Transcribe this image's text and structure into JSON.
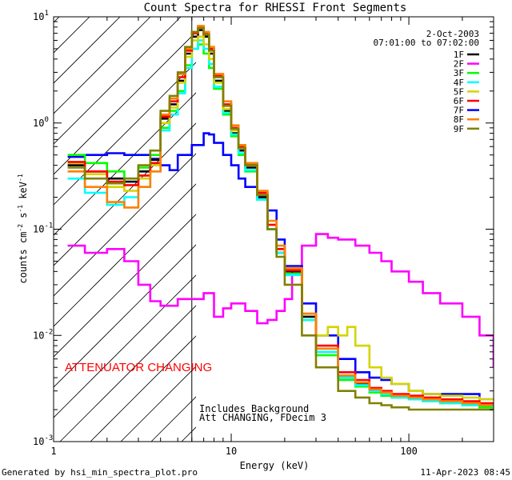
{
  "chart_data": {
    "type": "line",
    "title": "Count Spectra for RHESSI Front Segments",
    "xlabel": "Energy (keV)",
    "ylabel_parts": {
      "main": "counts cm",
      "sup1": "-2",
      "s": " s",
      "sup2": "-1",
      "kev": " keV",
      "sup3": "-1"
    },
    "x_scale": "log",
    "y_scale": "log",
    "xlim": [
      1,
      300
    ],
    "ylim": [
      0.001,
      10
    ],
    "x_ticks": [
      {
        "v": 1,
        "label": "1"
      },
      {
        "v": 10,
        "label": "10"
      },
      {
        "v": 100,
        "label": "100"
      }
    ],
    "y_ticks": [
      {
        "v": 0.001,
        "base": "10",
        "exp": "-3"
      },
      {
        "v": 0.01,
        "base": "10",
        "exp": "-2"
      },
      {
        "v": 0.1,
        "base": "10",
        "exp": "-1"
      },
      {
        "v": 1,
        "base": "10",
        "exp": "0"
      },
      {
        "v": 10,
        "base": "10",
        "exp": "1"
      }
    ],
    "date": "2-Oct-2003",
    "time_range": "07:01:00 to 07:02:00",
    "attenuator_boundary_kev": 6,
    "attenuator_label": "ATTENUATOR CHANGING",
    "footnote_lines": [
      "Includes Background",
      "Att CHANGING, FDecim 3"
    ],
    "legend": [
      {
        "name": "1F",
        "color": "#000000"
      },
      {
        "name": "2F",
        "color": "#ff00ff"
      },
      {
        "name": "3F",
        "color": "#00ff00"
      },
      {
        "name": "4F",
        "color": "#00ffff"
      },
      {
        "name": "5F",
        "color": "#d4d400"
      },
      {
        "name": "6F",
        "color": "#ff0000"
      },
      {
        "name": "7F",
        "color": "#0000ff"
      },
      {
        "name": "8F",
        "color": "#ff8000"
      },
      {
        "name": "9F",
        "color": "#808000"
      }
    ],
    "series": [
      {
        "name": "2F",
        "color": "#ff00ff",
        "x": [
          1.2,
          1.5,
          2,
          2.5,
          3,
          3.5,
          4,
          5,
          6,
          7,
          8,
          9,
          10,
          11,
          12,
          14,
          16,
          18,
          20,
          22,
          25,
          30,
          35,
          40,
          50,
          60,
          70,
          80,
          100,
          120,
          150,
          200,
          250,
          300
        ],
        "y": [
          0.07,
          0.06,
          0.065,
          0.05,
          0.03,
          0.021,
          0.019,
          0.022,
          0.022,
          0.025,
          0.015,
          0.018,
          0.02,
          0.02,
          0.017,
          0.013,
          0.014,
          0.017,
          0.022,
          0.04,
          0.07,
          0.09,
          0.083,
          0.08,
          0.07,
          0.06,
          0.05,
          0.04,
          0.032,
          0.025,
          0.02,
          0.015,
          0.01,
          0.005
        ]
      },
      {
        "name": "7F",
        "color": "#0000ff",
        "x": [
          1.2,
          1.5,
          2,
          2.5,
          3,
          3.5,
          4,
          4.5,
          5,
          6,
          7,
          7.5,
          8,
          9,
          10,
          11,
          12,
          14,
          16,
          18,
          20,
          25,
          30,
          40,
          50,
          60,
          70,
          80,
          100,
          120,
          150,
          200,
          250,
          300
        ],
        "y": [
          0.48,
          0.5,
          0.52,
          0.5,
          0.5,
          0.46,
          0.4,
          0.36,
          0.5,
          0.62,
          0.8,
          0.78,
          0.65,
          0.5,
          0.4,
          0.3,
          0.25,
          0.2,
          0.15,
          0.08,
          0.045,
          0.02,
          0.01,
          0.006,
          0.0045,
          0.004,
          0.0038,
          0.0035,
          0.003,
          0.0028,
          0.0028,
          0.0028,
          0.0025,
          0.0025
        ]
      },
      {
        "name": "1F",
        "color": "#000000",
        "x": [
          1.2,
          1.5,
          2,
          2.5,
          3,
          3.5,
          4,
          4.5,
          5,
          5.5,
          6,
          6.5,
          7,
          7.5,
          8,
          9,
          10,
          11,
          12,
          14,
          16,
          18,
          20,
          25,
          30,
          40,
          50,
          60,
          70,
          80,
          100,
          120,
          150,
          200,
          250,
          300
        ],
        "y": [
          0.4,
          0.35,
          0.3,
          0.28,
          0.35,
          0.45,
          1.1,
          1.5,
          2.5,
          4.5,
          6.5,
          7.5,
          6.5,
          4.5,
          2.5,
          1.3,
          0.8,
          0.55,
          0.38,
          0.2,
          0.1,
          0.06,
          0.04,
          0.015,
          0.007,
          0.004,
          0.0035,
          0.003,
          0.0028,
          0.0027,
          0.0026,
          0.0025,
          0.0024,
          0.0023,
          0.0022,
          0.0022
        ]
      },
      {
        "name": "3F",
        "color": "#00ff00",
        "x": [
          1.2,
          1.5,
          2,
          2.5,
          3,
          3.5,
          4,
          4.5,
          5,
          5.5,
          6,
          6.5,
          7,
          7.5,
          8,
          9,
          10,
          11,
          12,
          14,
          16,
          18,
          20,
          25,
          30,
          40,
          50,
          60,
          70,
          80,
          100,
          120,
          150,
          200,
          250,
          300
        ],
        "y": [
          0.5,
          0.42,
          0.35,
          0.3,
          0.38,
          0.5,
          0.9,
          1.3,
          2.0,
          3.5,
          5.0,
          5.5,
          4.5,
          3.3,
          2.1,
          1.2,
          0.75,
          0.5,
          0.35,
          0.19,
          0.1,
          0.06,
          0.038,
          0.014,
          0.0065,
          0.0038,
          0.0033,
          0.0029,
          0.0027,
          0.0026,
          0.0025,
          0.0024,
          0.0023,
          0.0022,
          0.0021,
          0.0021
        ]
      },
      {
        "name": "4F",
        "color": "#00ffff",
        "x": [
          1.2,
          1.5,
          2,
          2.5,
          3,
          3.5,
          4,
          4.5,
          5,
          5.5,
          6,
          6.5,
          7,
          7.5,
          8,
          9,
          10,
          11,
          12,
          14,
          16,
          18,
          20,
          25,
          30,
          40,
          50,
          60,
          70,
          80,
          100,
          120,
          150,
          200,
          250,
          300
        ],
        "y": [
          0.3,
          0.22,
          0.17,
          0.2,
          0.25,
          0.35,
          0.85,
          1.2,
          1.9,
          3.3,
          5.0,
          6.0,
          5.0,
          3.6,
          2.2,
          1.25,
          0.78,
          0.52,
          0.36,
          0.19,
          0.1,
          0.06,
          0.037,
          0.014,
          0.007,
          0.004,
          0.0034,
          0.003,
          0.0028,
          0.0026,
          0.0025,
          0.0024,
          0.0023,
          0.0022,
          0.0022,
          0.0021
        ]
      },
      {
        "name": "5F",
        "color": "#d4d400",
        "x": [
          1.2,
          1.5,
          2,
          2.5,
          3,
          3.5,
          4,
          4.5,
          5,
          5.5,
          6,
          6.5,
          7,
          7.5,
          8,
          9,
          10,
          11,
          12,
          14,
          16,
          18,
          20,
          25,
          30,
          35,
          40,
          45,
          50,
          60,
          70,
          80,
          100,
          120,
          150,
          200,
          250,
          300
        ],
        "y": [
          0.42,
          0.33,
          0.25,
          0.23,
          0.3,
          0.4,
          1.0,
          1.4,
          2.4,
          4.2,
          6.0,
          6.5,
          5.5,
          4.0,
          2.4,
          1.35,
          0.85,
          0.58,
          0.4,
          0.22,
          0.11,
          0.065,
          0.042,
          0.016,
          0.01,
          0.012,
          0.01,
          0.012,
          0.008,
          0.005,
          0.004,
          0.0035,
          0.003,
          0.0028,
          0.0027,
          0.0026,
          0.0025,
          0.0025
        ]
      },
      {
        "name": "6F",
        "color": "#ff0000",
        "x": [
          1.2,
          1.5,
          2,
          2.5,
          3,
          3.5,
          4,
          4.5,
          5,
          5.5,
          6,
          6.5,
          7,
          7.5,
          8,
          9,
          10,
          11,
          12,
          14,
          16,
          18,
          20,
          25,
          30,
          40,
          50,
          60,
          70,
          80,
          100,
          120,
          150,
          200,
          250,
          300
        ],
        "y": [
          0.43,
          0.35,
          0.28,
          0.26,
          0.32,
          0.42,
          1.15,
          1.6,
          2.7,
          4.8,
          7.0,
          8.0,
          7.0,
          5.0,
          2.8,
          1.5,
          0.9,
          0.6,
          0.41,
          0.22,
          0.11,
          0.065,
          0.041,
          0.016,
          0.008,
          0.0045,
          0.0038,
          0.0032,
          0.003,
          0.0028,
          0.0027,
          0.0026,
          0.0025,
          0.0024,
          0.0023,
          0.0023
        ]
      },
      {
        "name": "8F",
        "color": "#ff8000",
        "x": [
          1.2,
          1.5,
          2,
          2.5,
          3,
          3.5,
          4,
          4.5,
          5,
          5.5,
          6,
          6.5,
          7,
          7.5,
          8,
          9,
          10,
          11,
          12,
          14,
          16,
          18,
          20,
          25,
          30,
          40,
          50,
          60,
          70,
          80,
          100,
          120,
          150,
          200,
          250,
          300
        ],
        "y": [
          0.35,
          0.25,
          0.18,
          0.16,
          0.25,
          0.35,
          1.2,
          1.7,
          2.9,
          5.0,
          7.2,
          8.2,
          7.2,
          5.2,
          2.9,
          1.6,
          0.95,
          0.62,
          0.42,
          0.23,
          0.12,
          0.07,
          0.043,
          0.016,
          0.0075,
          0.0042,
          0.0036,
          0.0031,
          0.0029,
          0.0027,
          0.0026,
          0.0025,
          0.0024,
          0.0023,
          0.0022,
          0.0022
        ]
      },
      {
        "name": "9F",
        "color": "#808000",
        "x": [
          1.2,
          1.5,
          2,
          2.5,
          3,
          3.5,
          4,
          4.5,
          5,
          5.5,
          6,
          6.5,
          7,
          7.5,
          8,
          9,
          10,
          11,
          12,
          14,
          16,
          18,
          20,
          25,
          30,
          40,
          50,
          60,
          70,
          80,
          100,
          120,
          150,
          200,
          250,
          300
        ],
        "y": [
          0.38,
          0.3,
          0.27,
          0.3,
          0.4,
          0.55,
          1.3,
          1.8,
          3.0,
          5.2,
          7.2,
          7.8,
          6.8,
          4.8,
          2.7,
          1.45,
          0.88,
          0.58,
          0.4,
          0.21,
          0.1,
          0.055,
          0.03,
          0.01,
          0.005,
          0.003,
          0.0026,
          0.0023,
          0.0022,
          0.0021,
          0.002,
          0.002,
          0.002,
          0.002,
          0.002,
          0.002
        ]
      }
    ]
  },
  "footer": {
    "left": "Generated by hsi_min_spectra_plot.pro",
    "right": "11-Apr-2023 08:45"
  }
}
